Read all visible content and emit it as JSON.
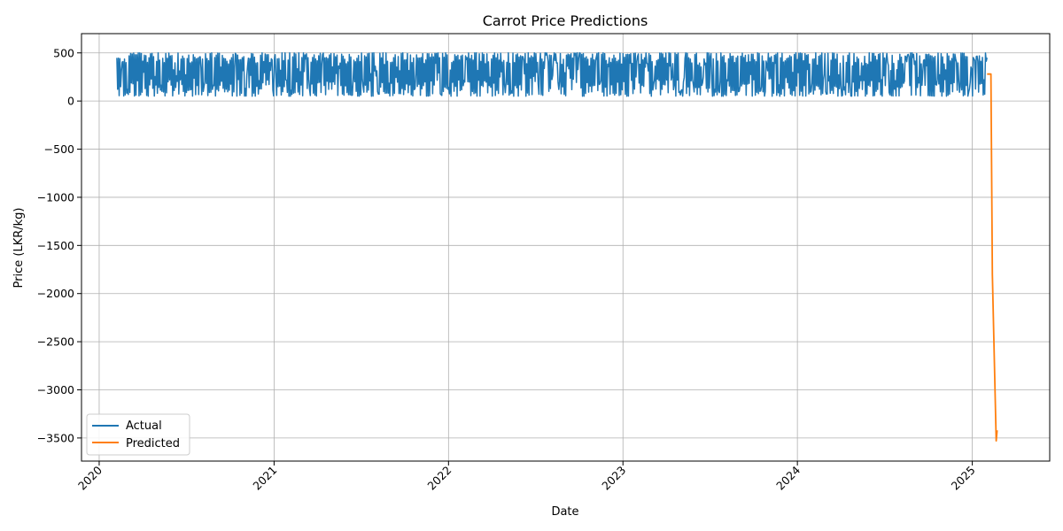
{
  "chart_data": {
    "type": "line",
    "title": "Carrot Price Predictions",
    "xlabel": "Date",
    "ylabel": "Price (LKR/kg)",
    "xlim": [
      "2019-11-25",
      "2025-06-12"
    ],
    "ylim": [
      -3740,
      700
    ],
    "x_ticks": [
      "2020",
      "2021",
      "2022",
      "2023",
      "2024",
      "2025"
    ],
    "x_tick_dates": [
      "2020-01-01",
      "2021-01-01",
      "2022-01-01",
      "2023-01-01",
      "2024-01-01",
      "2025-01-01"
    ],
    "y_ticks": [
      500,
      0,
      -500,
      -1000,
      -1500,
      -2000,
      -2500,
      -3000,
      -3500
    ],
    "y_tick_labels": [
      "500",
      "0",
      "−500",
      "−1000",
      "−1500",
      "−2000",
      "−2500",
      "−3000",
      "−3500"
    ],
    "grid": true,
    "legend_position": "bottom-left",
    "series": [
      {
        "name": "Actual",
        "color": "#1f77b4",
        "date_range": [
          "2020-02-07",
          "2025-02-01"
        ],
        "value_range": [
          50,
          500
        ],
        "typical_mean": 280
      },
      {
        "name": "Predicted",
        "color": "#ff7f0e",
        "points": [
          [
            "2025-02-01",
            280
          ],
          [
            "2025-02-04",
            280
          ],
          [
            "2025-02-06",
            280
          ],
          [
            "2025-02-09",
            280
          ],
          [
            "2025-02-12",
            -1800
          ],
          [
            "2025-02-20",
            -3530
          ],
          [
            "2025-02-22",
            -3420
          ]
        ]
      }
    ]
  }
}
